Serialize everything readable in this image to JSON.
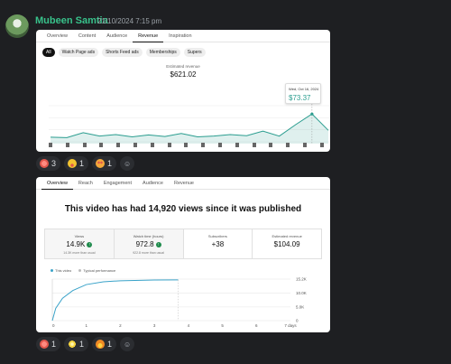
{
  "message": {
    "author": "Mubeen Samtia",
    "timestamp": "21/10/2024 7:15 pm",
    "author_color": "#38c28b"
  },
  "revenue_card": {
    "tabs": [
      "Overview",
      "Content",
      "Audience",
      "Revenue",
      "Inspiration"
    ],
    "active_tab": "Revenue",
    "chips": [
      "All",
      "Watch Page ads",
      "Shorts Feed ads",
      "Memberships",
      "Supers"
    ],
    "active_chip": "All",
    "estimated_label": "Estimated revenue",
    "estimated_value": "$621.02",
    "tooltip_date": "Wed, Oct 16, 2024",
    "tooltip_value": "$73.37",
    "accent": "#2a9d8f"
  },
  "overview_card": {
    "tabs": [
      "Overview",
      "Reach",
      "Engagement",
      "Audience",
      "Revenue"
    ],
    "active_tab": "Overview",
    "headline": "This video has had 14,920 views since it was published",
    "metrics": [
      {
        "label": "Views",
        "value": "14.9K",
        "sub": "14.3K more than usual",
        "up": true
      },
      {
        "label": "Watch time (hours)",
        "value": "972.8",
        "sub": "922.8 more than usual",
        "up": true
      },
      {
        "label": "Subscribers",
        "value": "+38",
        "sub": "",
        "up": false
      },
      {
        "label": "Estimated revenue",
        "value": "$104.09",
        "sub": "",
        "up": false
      }
    ],
    "legend": {
      "this_video": "This video",
      "typical": "Typical performance"
    }
  },
  "chart_data": [
    {
      "type": "area",
      "title": "Estimated revenue",
      "x": [
        1,
        2,
        3,
        4,
        5,
        6,
        7,
        8,
        9,
        10,
        11,
        12,
        13,
        14,
        15,
        16,
        17,
        18
      ],
      "values": [
        12,
        11,
        24,
        15,
        19,
        13,
        18,
        14,
        22,
        13,
        15,
        19,
        16,
        28,
        15,
        45,
        73,
        30
      ],
      "ylim": [
        0,
        90
      ],
      "grid": true,
      "color": "#2a9d8f"
    },
    {
      "type": "line",
      "title": "",
      "x_ticks": [
        "0",
        "1",
        "2",
        "3",
        "4",
        "5",
        "6",
        "7 days"
      ],
      "y_ticks": [
        "15.2K",
        "10.0K",
        "5.0K",
        "0"
      ],
      "x": [
        0,
        0.1,
        0.3,
        0.6,
        1.0,
        1.5,
        2.0,
        3.0,
        3.7
      ],
      "values": [
        0,
        4500,
        8200,
        11000,
        13200,
        14200,
        14600,
        14850,
        14920
      ],
      "xlim": [
        0,
        7
      ],
      "ylim": [
        0,
        15200
      ],
      "grid": true,
      "color": "#3aa3c9"
    }
  ],
  "reactions_1": [
    {
      "icon": "heart-hands-emoji",
      "count": "3",
      "color": "#e2574c"
    },
    {
      "icon": "tongue-emoji",
      "count": "1",
      "color": "#f4c430"
    },
    {
      "icon": "heart-eyes-emoji",
      "count": "1",
      "color": "#f4a83a"
    }
  ],
  "reactions_2": [
    {
      "icon": "heart-hands-emoji",
      "count": "1",
      "color": "#e2574c"
    },
    {
      "icon": "sparkles-emoji",
      "count": "1",
      "color": "#f5d33f"
    },
    {
      "icon": "fire-emoji",
      "count": "1",
      "color": "#f08a24"
    }
  ]
}
